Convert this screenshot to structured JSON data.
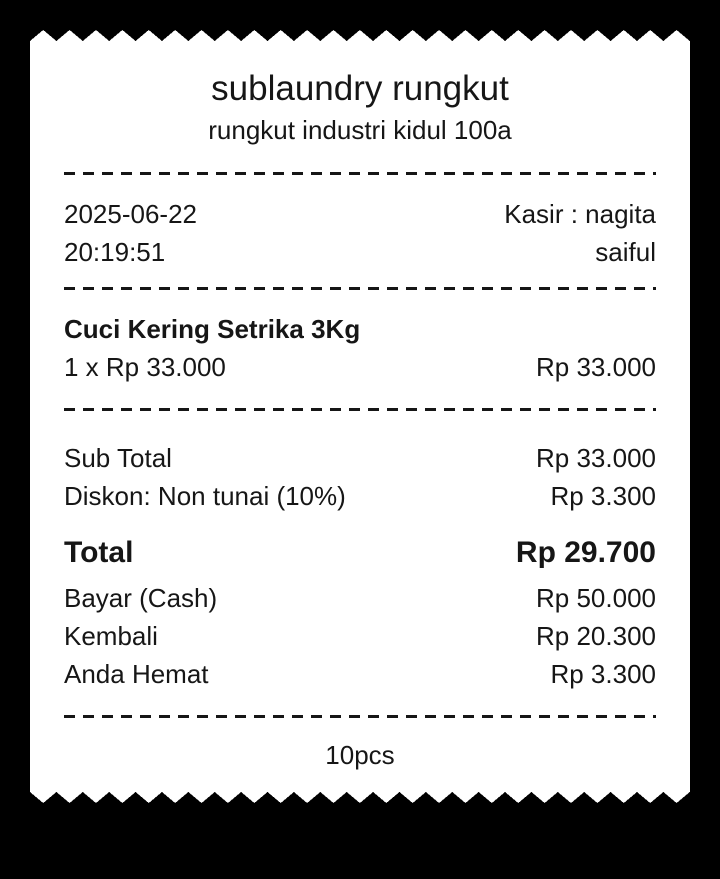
{
  "receipt": {
    "header": {
      "store_name": "sublaundry rungkut",
      "store_address": "rungkut industri kidul 100a"
    },
    "info": {
      "date": "2025-06-22",
      "time": "20:19:51",
      "cashier": "Kasir : nagita",
      "cashier_line2": "saiful"
    },
    "item": {
      "name": "Cuci Kering Setrika 3Kg",
      "qty_price": "1 x Rp 33.000",
      "amount": "Rp 33.000"
    },
    "summary": {
      "subtotal_label": "Sub Total",
      "subtotal_value": "Rp 33.000",
      "discount_label": "Diskon: Non tunai (10%)",
      "discount_value": "Rp 3.300"
    },
    "total": {
      "label": "Total",
      "value": "Rp 29.700"
    },
    "payment": {
      "paid_label": "Bayar (Cash)",
      "paid_value": "Rp 50.000",
      "change_label": "Kembali",
      "change_value": "Rp 20.300",
      "savings_label": "Anda Hemat",
      "savings_value": "Rp 3.300"
    },
    "footer": {
      "pieces": "10pcs"
    },
    "colors": {
      "background": "#000000",
      "paper": "#ffffff",
      "ink": "#161616"
    }
  }
}
